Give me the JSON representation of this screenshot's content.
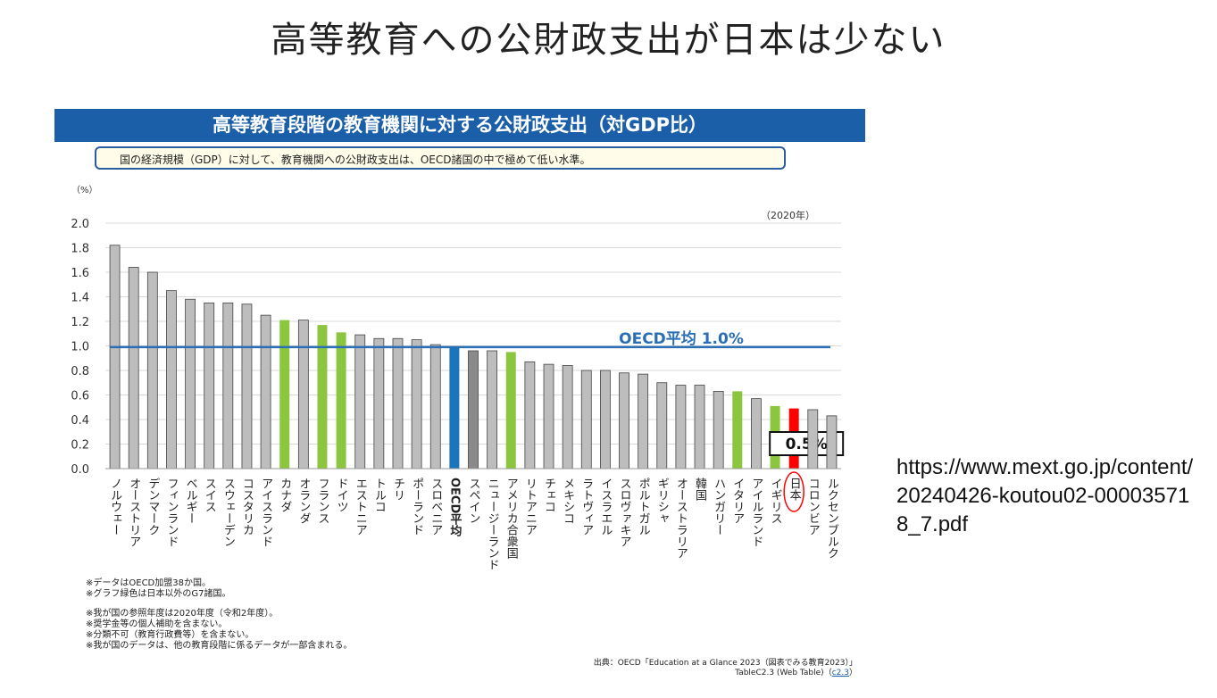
{
  "slide_title": "高等教育への公財政支出が日本は少ない",
  "banner_title": "高等教育段階の教育機関に対する公財政支出（対GDP比）",
  "note": "国の経済規模（GDP）に対して、教育機関への公財政支出は、OECD諸国の中で極めて低い水準。",
  "url": "https://www.mext.go.jp/content/20240426-koutou02-000035718_7.pdf",
  "colors": {
    "gray": "#bdbdbd",
    "green": "#8cc63f",
    "blue": "#1b75bb",
    "red": "#ff0000",
    "avg_line": "#2a6fb5",
    "banner": "#1b5fa8"
  },
  "chart_data": {
    "type": "bar",
    "title": "高等教育段階の教育機関に対する公財政支出（対GDP比）",
    "ylabel": "（%）",
    "year_label": "（2020年）",
    "ylim": [
      0,
      2.0
    ],
    "yticks": [
      "2.0",
      "1.8",
      "1.6",
      "1.4",
      "1.2",
      "1.0",
      "0.8",
      "0.6",
      "0.4",
      "0.2",
      "0.0"
    ],
    "avg_label": "OECD平均 1.0%",
    "avg_value": 0.99,
    "japan_label": "0.5%",
    "categories": [
      "ノルウェー",
      "オーストリア",
      "デンマーク",
      "フィンランド",
      "ベルギー",
      "スイス",
      "スウェーデン",
      "コスタリカ",
      "アイスランド",
      "カナダ",
      "オランダ",
      "フランス",
      "ドイツ",
      "エストニア",
      "トルコ",
      "チリ",
      "ポーランド",
      "スロベニア",
      "OECD平均",
      "スペイン",
      "ニュージーランド",
      "アメリカ合衆国",
      "リトアニア",
      "チェコ",
      "メキシコ",
      "ラトヴィア",
      "イスラエル",
      "スロヴァキア",
      "ポルトガル",
      "ギリシャ",
      "オーストラリア",
      "韓国",
      "ハンガリー",
      "イタリア",
      "アイルランド",
      "イギリス",
      "日本",
      "コロンビア",
      "ルクセンブルク"
    ],
    "values": [
      1.82,
      1.64,
      1.6,
      1.45,
      1.38,
      1.35,
      1.35,
      1.34,
      1.25,
      1.21,
      1.21,
      1.17,
      1.11,
      1.09,
      1.06,
      1.06,
      1.05,
      1.01,
      0.99,
      0.96,
      0.96,
      0.95,
      0.87,
      0.85,
      0.84,
      0.8,
      0.8,
      0.78,
      0.77,
      0.7,
      0.68,
      0.68,
      0.63,
      0.63,
      0.57,
      0.51,
      0.49,
      0.48,
      0.43
    ],
    "kinds": [
      "gray",
      "gray",
      "gray",
      "gray",
      "gray",
      "gray",
      "gray",
      "gray",
      "gray",
      "green",
      "gray",
      "green",
      "green",
      "gray",
      "gray",
      "gray",
      "gray",
      "gray",
      "blue",
      "dark",
      "gray",
      "green",
      "gray",
      "gray",
      "gray",
      "gray",
      "gray",
      "gray",
      "gray",
      "gray",
      "gray",
      "gray",
      "gray",
      "green",
      "gray",
      "green",
      "red",
      "gray",
      "gray"
    ]
  },
  "footnotes": {
    "group1": [
      "※データはOECD加盟38か国。",
      "※グラフ緑色は日本以外のG7諸国。"
    ],
    "group2": [
      "※我が国の参照年度は2020年度（令和2年度）。",
      "※奨学金等の個人補助を含まない。",
      "※分類不可（教育行政費等）を含まない。",
      "※我が国のデータは、他の教育段階に係るデータが一部含まれる。"
    ]
  },
  "source": {
    "line1": "出典：OECD「Education at a Glance 2023（図表でみる教育2023）」",
    "line2": "TableC2.3 (Web Table)",
    "link": "c2.3"
  }
}
